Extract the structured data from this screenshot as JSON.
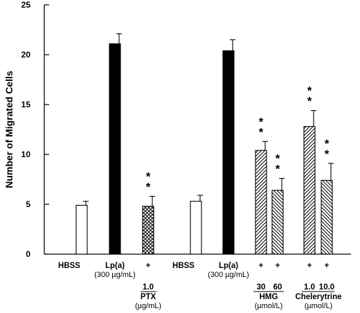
{
  "chart_data": {
    "type": "bar",
    "ylabel": "Number of Migrated Cells",
    "ylim": [
      0,
      25
    ],
    "yticks": [
      0,
      5,
      10,
      15,
      20,
      25
    ],
    "grid": false,
    "bars": [
      {
        "value": 4.9,
        "error": 0.4,
        "fill": "open",
        "label": "HBSS",
        "sig": ""
      },
      {
        "value": 21.1,
        "error": 1.0,
        "fill": "solid",
        "label": "Lp(a)",
        "sub": "(300 µg/mL)",
        "sig": ""
      },
      {
        "value": 4.8,
        "error": 1.0,
        "fill": "crosshatch",
        "label": "+",
        "sig": "* *"
      },
      {
        "value": 5.3,
        "error": 0.6,
        "fill": "open",
        "label": "HBSS",
        "sig": ""
      },
      {
        "value": 20.4,
        "error": 1.1,
        "fill": "solid",
        "label": "Lp(a)",
        "sub": "(300 µg/mL)",
        "sig": ""
      },
      {
        "value": 10.4,
        "error": 0.9,
        "fill": "diag-up",
        "label": "+",
        "sig": "* *"
      },
      {
        "value": 6.4,
        "error": 1.2,
        "fill": "diag-down",
        "label": "+",
        "sig": "* *"
      },
      {
        "value": 12.8,
        "error": 1.6,
        "fill": "diag-up",
        "label": "+",
        "sig": "* *"
      },
      {
        "value": 7.4,
        "error": 1.7,
        "fill": "diag-down",
        "label": "+",
        "sig": "* *"
      }
    ],
    "treatments": [
      {
        "doses": [
          "1.0"
        ],
        "name": "PTX",
        "unit": "(µg/mL)"
      },
      {
        "doses": [
          "30",
          "60"
        ],
        "name": "HMG",
        "unit": "(µmol/L)"
      },
      {
        "doses": [
          "1.0",
          "10.0"
        ],
        "name": "Chelerytrine",
        "unit": "(µmol/L)"
      }
    ]
  }
}
